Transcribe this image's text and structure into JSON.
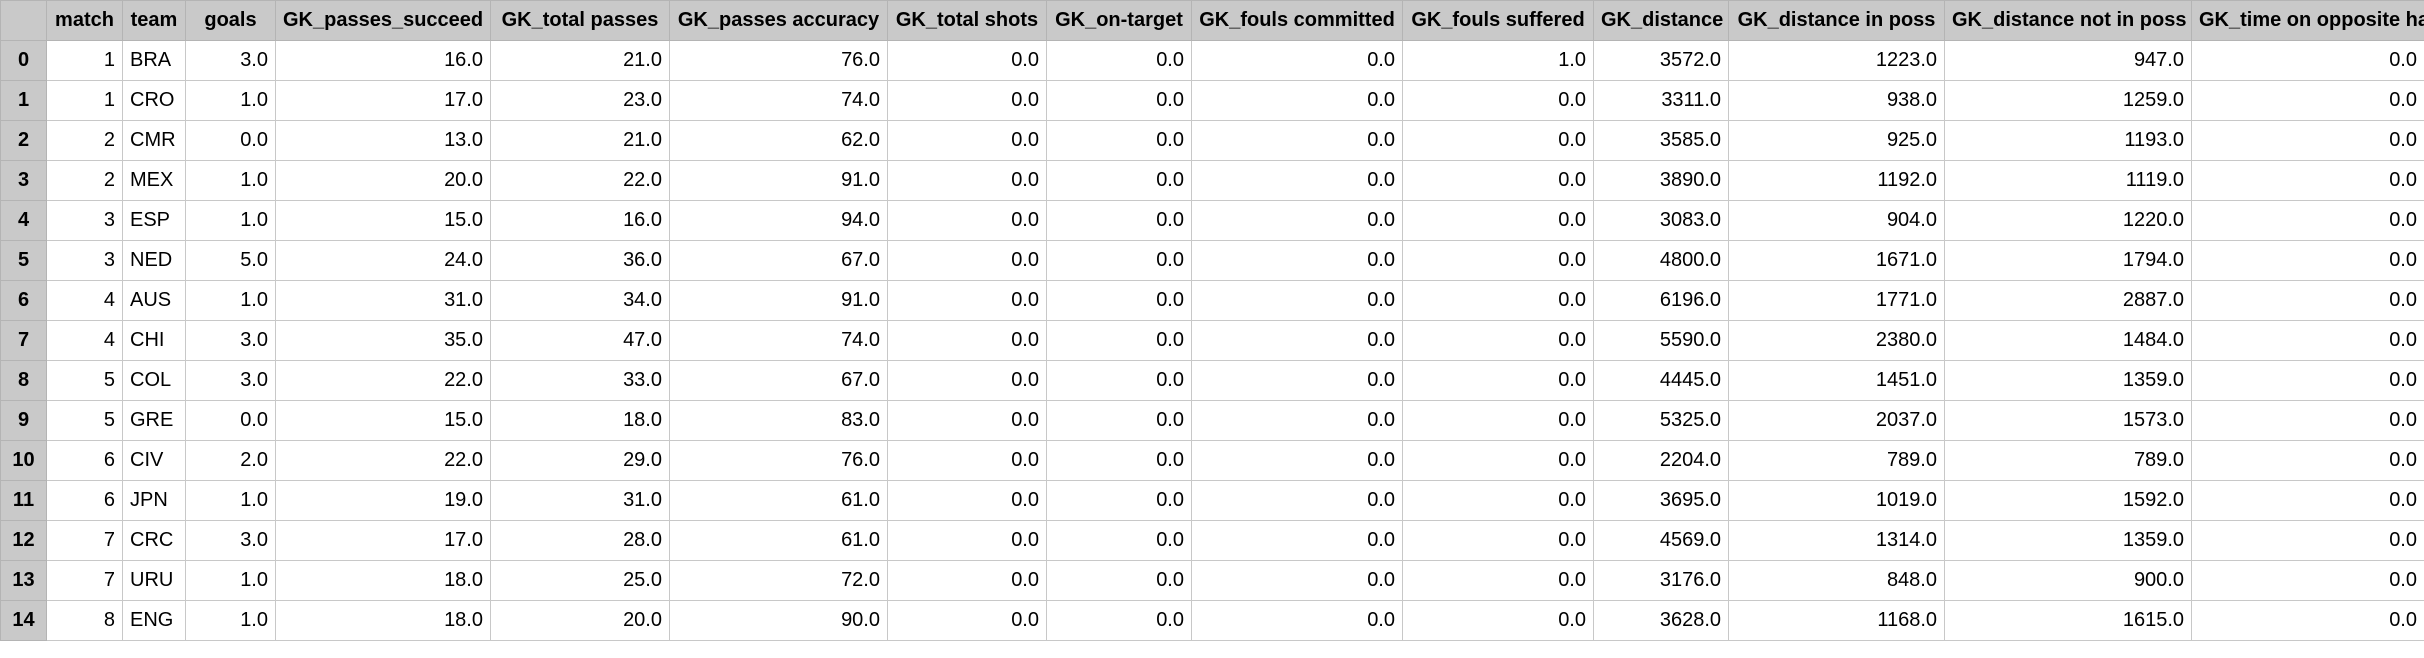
{
  "table": {
    "index_header": "",
    "columns": [
      "match",
      "team",
      "goals",
      "GK_passes_succeed",
      "GK_total passes",
      "GK_passes accuracy",
      "GK_total shots",
      "GK_on-target",
      "GK_fouls committed",
      "GK_fouls suffered",
      "GK_distance",
      "GK_distance in poss",
      "GK_distance not in poss",
      "GK_time on opposite half"
    ],
    "rows": [
      {
        "index": "0",
        "cells": [
          "1",
          "BRA",
          "3.0",
          "16.0",
          "21.0",
          "76.0",
          "0.0",
          "0.0",
          "0.0",
          "1.0",
          "3572.0",
          "1223.0",
          "947.0",
          "0.0"
        ]
      },
      {
        "index": "1",
        "cells": [
          "1",
          "CRO",
          "1.0",
          "17.0",
          "23.0",
          "74.0",
          "0.0",
          "0.0",
          "0.0",
          "0.0",
          "3311.0",
          "938.0",
          "1259.0",
          "0.0"
        ]
      },
      {
        "index": "2",
        "cells": [
          "2",
          "CMR",
          "0.0",
          "13.0",
          "21.0",
          "62.0",
          "0.0",
          "0.0",
          "0.0",
          "0.0",
          "3585.0",
          "925.0",
          "1193.0",
          "0.0"
        ]
      },
      {
        "index": "3",
        "cells": [
          "2",
          "MEX",
          "1.0",
          "20.0",
          "22.0",
          "91.0",
          "0.0",
          "0.0",
          "0.0",
          "0.0",
          "3890.0",
          "1192.0",
          "1119.0",
          "0.0"
        ]
      },
      {
        "index": "4",
        "cells": [
          "3",
          "ESP",
          "1.0",
          "15.0",
          "16.0",
          "94.0",
          "0.0",
          "0.0",
          "0.0",
          "0.0",
          "3083.0",
          "904.0",
          "1220.0",
          "0.0"
        ]
      },
      {
        "index": "5",
        "cells": [
          "3",
          "NED",
          "5.0",
          "24.0",
          "36.0",
          "67.0",
          "0.0",
          "0.0",
          "0.0",
          "0.0",
          "4800.0",
          "1671.0",
          "1794.0",
          "0.0"
        ]
      },
      {
        "index": "6",
        "cells": [
          "4",
          "AUS",
          "1.0",
          "31.0",
          "34.0",
          "91.0",
          "0.0",
          "0.0",
          "0.0",
          "0.0",
          "6196.0",
          "1771.0",
          "2887.0",
          "0.0"
        ]
      },
      {
        "index": "7",
        "cells": [
          "4",
          "CHI",
          "3.0",
          "35.0",
          "47.0",
          "74.0",
          "0.0",
          "0.0",
          "0.0",
          "0.0",
          "5590.0",
          "2380.0",
          "1484.0",
          "0.0"
        ]
      },
      {
        "index": "8",
        "cells": [
          "5",
          "COL",
          "3.0",
          "22.0",
          "33.0",
          "67.0",
          "0.0",
          "0.0",
          "0.0",
          "0.0",
          "4445.0",
          "1451.0",
          "1359.0",
          "0.0"
        ]
      },
      {
        "index": "9",
        "cells": [
          "5",
          "GRE",
          "0.0",
          "15.0",
          "18.0",
          "83.0",
          "0.0",
          "0.0",
          "0.0",
          "0.0",
          "5325.0",
          "2037.0",
          "1573.0",
          "0.0"
        ]
      },
      {
        "index": "10",
        "cells": [
          "6",
          "CIV",
          "2.0",
          "22.0",
          "29.0",
          "76.0",
          "0.0",
          "0.0",
          "0.0",
          "0.0",
          "2204.0",
          "789.0",
          "789.0",
          "0.0"
        ]
      },
      {
        "index": "11",
        "cells": [
          "6",
          "JPN",
          "1.0",
          "19.0",
          "31.0",
          "61.0",
          "0.0",
          "0.0",
          "0.0",
          "0.0",
          "3695.0",
          "1019.0",
          "1592.0",
          "0.0"
        ]
      },
      {
        "index": "12",
        "cells": [
          "7",
          "CRC",
          "3.0",
          "17.0",
          "28.0",
          "61.0",
          "0.0",
          "0.0",
          "0.0",
          "0.0",
          "4569.0",
          "1314.0",
          "1359.0",
          "0.0"
        ]
      },
      {
        "index": "13",
        "cells": [
          "7",
          "URU",
          "1.0",
          "18.0",
          "25.0",
          "72.0",
          "0.0",
          "0.0",
          "0.0",
          "0.0",
          "3176.0",
          "848.0",
          "900.0",
          "0.0"
        ]
      },
      {
        "index": "14",
        "cells": [
          "8",
          "ENG",
          "1.0",
          "18.0",
          "20.0",
          "90.0",
          "0.0",
          "0.0",
          "0.0",
          "0.0",
          "3628.0",
          "1168.0",
          "1615.0",
          "0.0"
        ]
      }
    ]
  }
}
